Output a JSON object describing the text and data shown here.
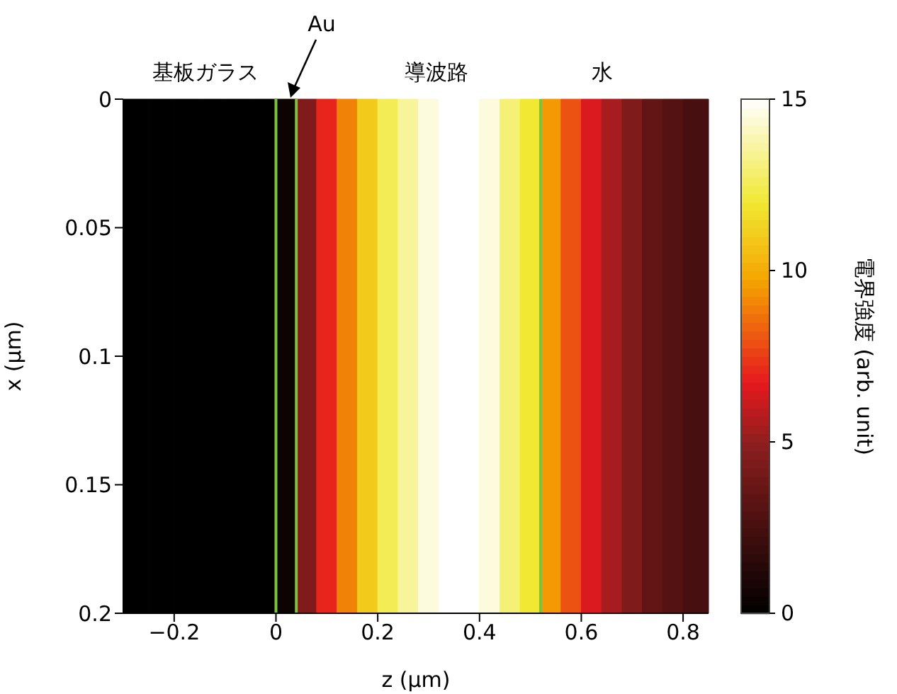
{
  "chart_data": {
    "type": "heatmap",
    "xlabel": "z (µm)",
    "ylabel": "x (µm)",
    "clabel": "電界強度 (arb. unit)",
    "x": [
      -0.275,
      -0.225,
      -0.175,
      -0.125,
      -0.075,
      -0.025,
      0.02,
      0.06,
      0.1,
      0.14,
      0.18,
      0.22,
      0.26,
      0.3,
      0.34,
      0.38,
      0.42,
      0.46,
      0.5,
      0.54,
      0.58,
      0.62,
      0.66,
      0.7,
      0.74,
      0.78,
      0.82
    ],
    "cells": [
      [
        0,
        0,
        0,
        0,
        0,
        0,
        0.5,
        4.5,
        7,
        9,
        11,
        12.5,
        13.5,
        14.5,
        15,
        15,
        14.5,
        13,
        12,
        9.5,
        8,
        6.5,
        5.5,
        4.5,
        3.5,
        3,
        2.5
      ]
    ],
    "xlim": [
      -0.3,
      0.85
    ],
    "xticks": [
      -0.2,
      0,
      0.2,
      0.4,
      0.6,
      0.8
    ],
    "ylim": [
      0.2,
      0
    ],
    "yticks": [
      0,
      0.05,
      0.1,
      0.15,
      0.2
    ],
    "clim": [
      0,
      15
    ],
    "cticks": [
      0,
      5,
      10,
      15
    ],
    "ref_lines": [
      {
        "axis": "x",
        "value": 0,
        "color": "#7cc242"
      },
      {
        "axis": "x",
        "value": 0.04,
        "color": "#7cc242"
      },
      {
        "axis": "x",
        "value": 0.52,
        "color": "#7cc242"
      }
    ],
    "annotations": [
      "基板ガラス",
      "Au",
      "導波路",
      "水"
    ]
  }
}
